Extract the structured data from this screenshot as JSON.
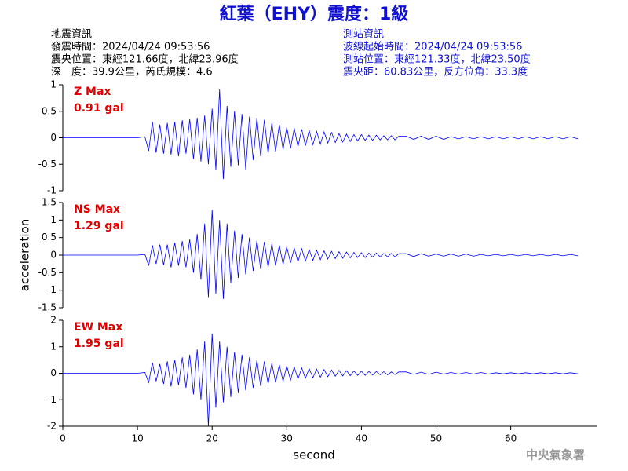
{
  "header": {
    "title": "紅葉（EHY）震度：1級",
    "left": [
      "地震資訊",
      "發震時間：2024/04/24 09:53:56",
      "震央位置：東經121.66度，北緯23.96度",
      "深　度：39.9公里，芮氏規模：4.6"
    ],
    "right": [
      "測站資訊",
      "波線起始時間：2024/04/24 09:53:56",
      "測站位置：東經121.33度，北緯23.50度",
      "震央距：60.83公里，反方位角：33.3度"
    ],
    "footer": "中央氣象署"
  },
  "chart_data": [
    {
      "type": "line",
      "label": "Z Max",
      "max_label": "0.91 gal",
      "color": "#0000ff",
      "xlim": [
        0,
        71.5
      ],
      "ylim": [
        -1,
        1
      ],
      "yticks": [
        -1,
        -0.5,
        0,
        0.5,
        1
      ],
      "x": [
        0,
        5,
        10,
        11,
        11.5,
        12,
        12.5,
        13,
        13.5,
        14,
        14.5,
        15,
        15.5,
        16,
        16.5,
        17,
        17.5,
        18,
        18.5,
        19,
        19.5,
        20,
        20.5,
        21,
        21.5,
        22,
        22.5,
        23,
        23.5,
        24,
        24.5,
        25,
        25.5,
        26,
        26.5,
        27,
        27.5,
        28,
        28.5,
        29,
        29.5,
        30,
        30.5,
        31,
        31.5,
        32,
        32.5,
        33,
        33.5,
        34,
        34.5,
        35,
        35.5,
        36,
        36.5,
        37,
        37.5,
        38,
        38.5,
        39,
        39.5,
        40,
        40.5,
        41,
        41.5,
        42,
        42.5,
        43,
        43.5,
        44,
        44.5,
        45,
        46,
        47,
        48,
        49,
        50,
        51,
        52,
        53,
        54,
        55,
        56,
        57,
        58,
        59,
        60,
        61,
        62,
        63,
        64,
        65,
        66,
        67,
        68,
        69
      ],
      "values": [
        0,
        0,
        0,
        0.02,
        -0.25,
        0.3,
        -0.28,
        0.25,
        -0.3,
        0.28,
        -0.32,
        0.3,
        -0.35,
        0.33,
        -0.3,
        0.35,
        -0.4,
        0.38,
        -0.45,
        0.42,
        -0.5,
        0.55,
        -0.6,
        0.91,
        -0.78,
        0.6,
        -0.55,
        0.5,
        -0.52,
        0.45,
        -0.6,
        0.4,
        -0.42,
        0.38,
        -0.35,
        0.34,
        -0.3,
        0.28,
        -0.26,
        0.25,
        -0.22,
        0.2,
        -0.2,
        0.18,
        -0.17,
        0.16,
        -0.15,
        0.14,
        -0.13,
        0.12,
        -0.12,
        0.11,
        -0.1,
        0.1,
        -0.09,
        0.08,
        -0.08,
        0.07,
        -0.07,
        0.06,
        -0.06,
        0.06,
        -0.05,
        0.05,
        -0.05,
        0.05,
        -0.04,
        0.04,
        -0.04,
        0.04,
        -0.04,
        0.03,
        0.03,
        -0.03,
        0.03,
        -0.03,
        0.03,
        -0.03,
        0.02,
        -0.02,
        0.02,
        -0.02,
        0.02,
        -0.02,
        0.02,
        -0.02,
        0.02,
        -0.02,
        0.02,
        -0.02,
        0.02,
        -0.02,
        0.02,
        -0.02,
        0.02,
        -0.02
      ]
    },
    {
      "type": "line",
      "label": "NS Max",
      "max_label": "1.29 gal",
      "color": "#0000ff",
      "ylabel": "acceleration",
      "xlim": [
        0,
        71.5
      ],
      "ylim": [
        -1.5,
        1.5
      ],
      "yticks": [
        -1.5,
        -1,
        -0.5,
        0,
        0.5,
        1,
        1.5
      ],
      "x": [
        0,
        5,
        10,
        11,
        11.5,
        12,
        12.5,
        13,
        13.5,
        14,
        14.5,
        15,
        15.5,
        16,
        16.5,
        17,
        17.5,
        18,
        18.5,
        19,
        19.5,
        20,
        20.5,
        21,
        21.5,
        22,
        22.5,
        23,
        23.5,
        24,
        24.5,
        25,
        25.5,
        26,
        26.5,
        27,
        27.5,
        28,
        28.5,
        29,
        29.5,
        30,
        30.5,
        31,
        31.5,
        32,
        32.5,
        33,
        33.5,
        34,
        34.5,
        35,
        35.5,
        36,
        36.5,
        37,
        37.5,
        38,
        38.5,
        39,
        39.5,
        40,
        40.5,
        41,
        41.5,
        42,
        42.5,
        43,
        43.5,
        44,
        44.5,
        45,
        46,
        47,
        48,
        49,
        50,
        51,
        52,
        53,
        54,
        55,
        56,
        57,
        58,
        59,
        60,
        61,
        62,
        63,
        64,
        65,
        66,
        67,
        68,
        69
      ],
      "values": [
        0,
        0,
        0,
        0.02,
        -0.3,
        0.28,
        -0.25,
        0.3,
        -0.28,
        0.3,
        -0.35,
        0.35,
        -0.3,
        0.4,
        -0.35,
        0.45,
        -0.5,
        0.6,
        -0.7,
        0.9,
        -1.2,
        1.29,
        -1.1,
        1.0,
        -1.25,
        0.9,
        -0.8,
        0.7,
        -0.65,
        0.6,
        -0.55,
        0.5,
        -0.45,
        0.42,
        -0.4,
        0.38,
        -0.35,
        0.32,
        -0.3,
        0.28,
        -0.26,
        0.24,
        -0.22,
        0.2,
        -0.19,
        0.18,
        -0.17,
        0.16,
        -0.15,
        0.14,
        -0.13,
        0.12,
        -0.11,
        0.11,
        -0.1,
        0.1,
        -0.09,
        0.09,
        -0.08,
        0.08,
        -0.07,
        0.07,
        -0.07,
        0.06,
        -0.06,
        0.06,
        -0.05,
        0.05,
        -0.05,
        0.05,
        -0.05,
        0.04,
        0.04,
        -0.04,
        0.04,
        -0.03,
        0.03,
        -0.03,
        0.03,
        -0.03,
        0.03,
        -0.03,
        0.02,
        -0.02,
        0.02,
        -0.02,
        0.02,
        -0.02,
        0.02,
        -0.02,
        0.02,
        -0.02,
        0.02,
        -0.02,
        0.02,
        -0.02
      ]
    },
    {
      "type": "line",
      "label": "EW Max",
      "max_label": "1.95 gal",
      "color": "#0000ff",
      "xlabel": "second",
      "xlim": [
        0,
        71.5
      ],
      "ylim": [
        -2,
        2
      ],
      "yticks": [
        -2,
        -1,
        0,
        1,
        2
      ],
      "xticks": [
        0,
        10,
        20,
        30,
        40,
        50,
        60
      ],
      "x": [
        0,
        5,
        10,
        11,
        11.5,
        12,
        12.5,
        13,
        13.5,
        14,
        14.5,
        15,
        15.5,
        16,
        16.5,
        17,
        17.5,
        18,
        18.5,
        19,
        19.5,
        20,
        20.5,
        21,
        21.5,
        22,
        22.5,
        23,
        23.5,
        24,
        24.5,
        25,
        25.5,
        26,
        26.5,
        27,
        27.5,
        28,
        28.5,
        29,
        29.5,
        30,
        30.5,
        31,
        31.5,
        32,
        32.5,
        33,
        33.5,
        34,
        34.5,
        35,
        35.5,
        36,
        36.5,
        37,
        37.5,
        38,
        38.5,
        39,
        39.5,
        40,
        40.5,
        41,
        41.5,
        42,
        42.5,
        43,
        43.5,
        44,
        44.5,
        45,
        46,
        47,
        48,
        49,
        50,
        51,
        52,
        53,
        54,
        55,
        56,
        57,
        58,
        59,
        60,
        61,
        62,
        63,
        64,
        65,
        66,
        67,
        68,
        69
      ],
      "values": [
        0,
        0,
        0,
        0.03,
        -0.35,
        0.4,
        -0.3,
        0.35,
        -0.4,
        0.45,
        -0.5,
        0.5,
        -0.45,
        0.6,
        -0.55,
        0.7,
        -0.8,
        0.9,
        -1.0,
        1.2,
        -2.0,
        1.5,
        -1.3,
        1.2,
        -1.1,
        1.0,
        -0.9,
        0.8,
        -0.75,
        0.7,
        -0.65,
        0.6,
        -0.55,
        0.5,
        -0.48,
        0.45,
        -0.4,
        0.38,
        -0.35,
        0.32,
        -0.3,
        0.28,
        -0.26,
        0.24,
        -0.22,
        0.2,
        -0.19,
        0.18,
        -0.17,
        0.16,
        -0.15,
        0.14,
        -0.13,
        0.12,
        -0.11,
        0.11,
        -0.1,
        0.1,
        -0.09,
        0.09,
        -0.08,
        0.08,
        -0.08,
        0.07,
        -0.07,
        0.07,
        -0.06,
        0.06,
        -0.06,
        0.05,
        -0.05,
        0.05,
        0.05,
        -0.04,
        0.04,
        -0.04,
        0.04,
        -0.03,
        0.03,
        -0.03,
        0.03,
        -0.03,
        0.03,
        -0.03,
        0.02,
        -0.02,
        0.02,
        -0.02,
        0.02,
        -0.02,
        0.02,
        -0.02,
        0.02,
        -0.02,
        0.02,
        -0.02
      ]
    }
  ]
}
